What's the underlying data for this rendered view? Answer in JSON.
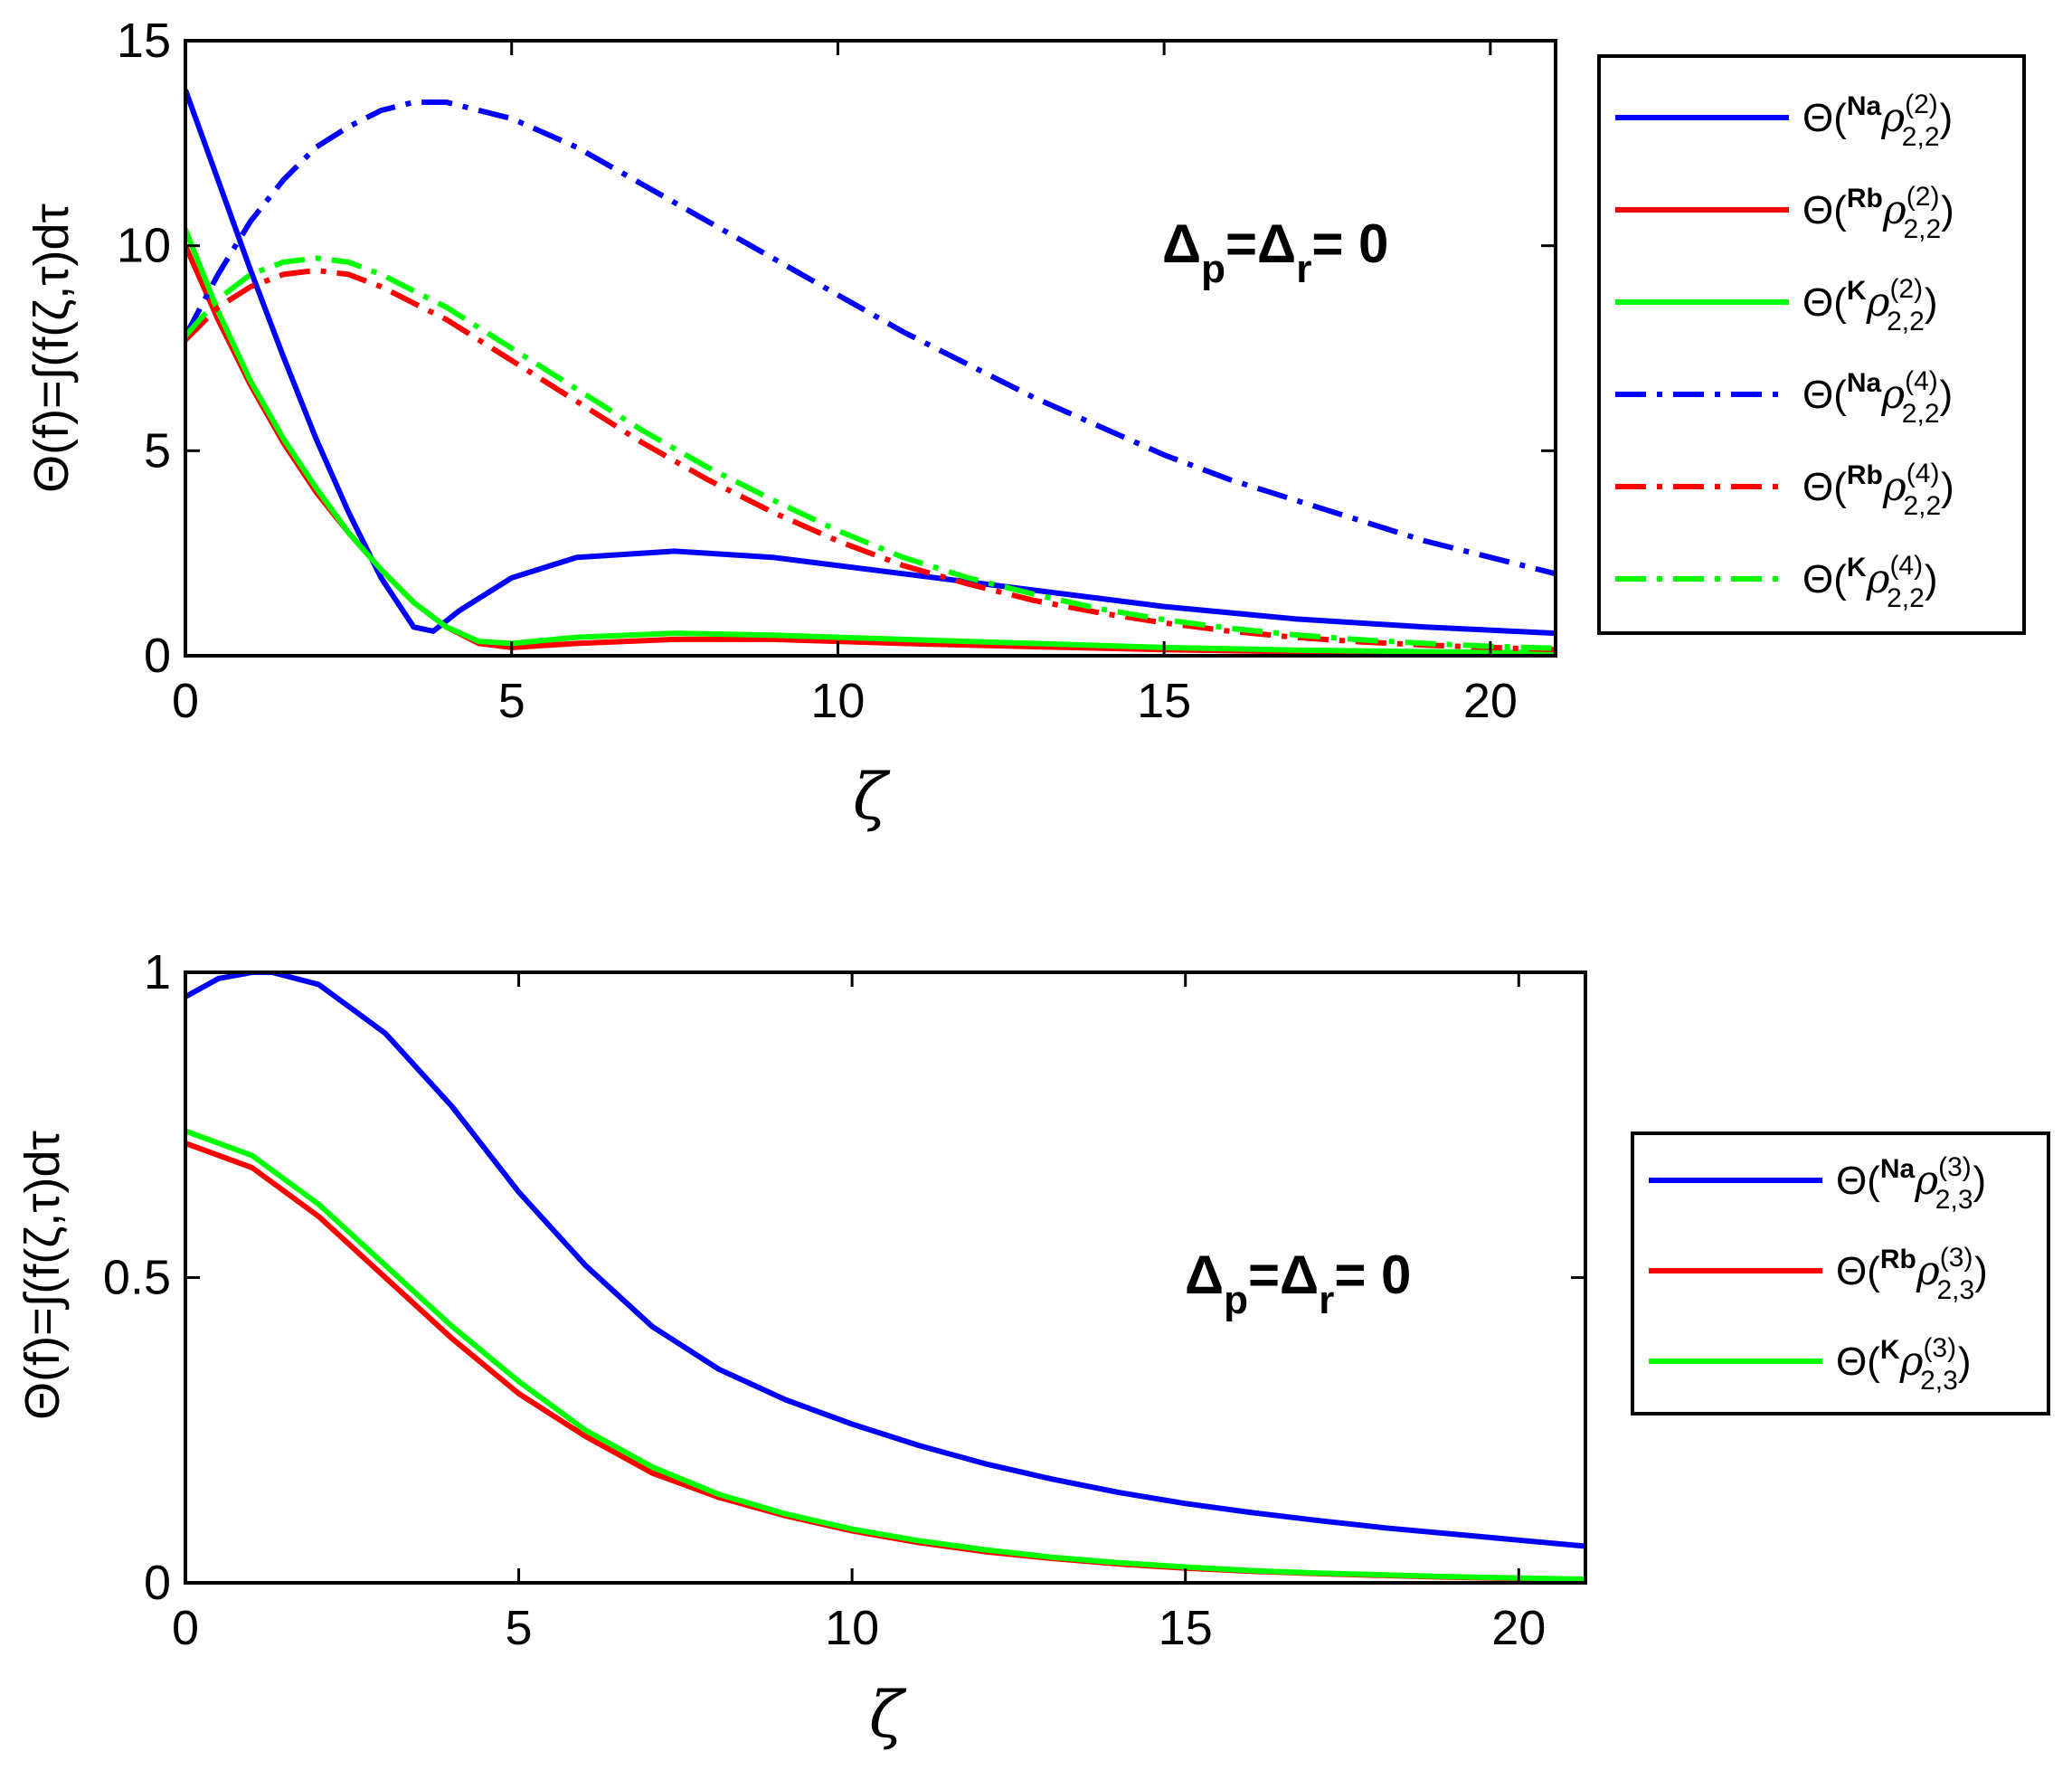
{
  "chart_data": [
    {
      "type": "line",
      "ylabel": "Θ(f)=∫(f(ζ,τ)dτ",
      "xlabel": "ζ",
      "xlim": [
        0,
        21
      ],
      "ylim": [
        0,
        15
      ],
      "xticks": [
        0,
        5,
        10,
        15,
        20
      ],
      "yticks": [
        0,
        5,
        10,
        15
      ],
      "annotation": {
        "text": "Δp=Δr= 0",
        "main1": "Δ",
        "sub1": "p",
        "mid": "=Δ",
        "sub2": "r",
        "tail": "= 0"
      },
      "legend_position": "outside-right",
      "series": [
        {
          "name": "Θ(Naρ(2)2,2)",
          "label": {
            "pre": "Na",
            "sup": "(2)",
            "sub": "2,2"
          },
          "color": "#0000ff",
          "dash": "solid",
          "x": [
            0,
            0.5,
            1,
            1.5,
            2,
            2.5,
            3,
            3.5,
            3.8,
            4.2,
            5,
            6,
            7.5,
            9,
            11,
            13,
            15,
            17,
            19,
            21
          ],
          "y": [
            13.8,
            11.6,
            9.4,
            7.3,
            5.3,
            3.5,
            1.9,
            0.7,
            0.6,
            1.1,
            1.9,
            2.4,
            2.55,
            2.4,
            2.0,
            1.6,
            1.2,
            0.9,
            0.7,
            0.55
          ]
        },
        {
          "name": "Θ(Rbρ(2)2,2)",
          "label": {
            "pre": "Rb",
            "sup": "(2)",
            "sub": "2,2"
          },
          "color": "#ff0000",
          "dash": "solid",
          "x": [
            0,
            0.5,
            1,
            1.5,
            2,
            2.5,
            3,
            3.5,
            4,
            4.5,
            5,
            6,
            7.5,
            9,
            11,
            13,
            15,
            17,
            19,
            21
          ],
          "y": [
            10.0,
            8.2,
            6.6,
            5.2,
            4.0,
            3.0,
            2.1,
            1.3,
            0.7,
            0.3,
            0.2,
            0.3,
            0.4,
            0.4,
            0.3,
            0.22,
            0.15,
            0.1,
            0.06,
            0.04
          ]
        },
        {
          "name": "Θ(Kρ(2)2,2)",
          "label": {
            "pre": "K",
            "sup": "(2)",
            "sub": "2,2"
          },
          "color": "#00ff00",
          "dash": "solid",
          "x": [
            0,
            0.5,
            1,
            1.5,
            2,
            2.5,
            3,
            3.5,
            4,
            4.5,
            5,
            6,
            7.5,
            9,
            11,
            13,
            15,
            17,
            19,
            21
          ],
          "y": [
            10.4,
            8.4,
            6.7,
            5.3,
            4.1,
            3.0,
            2.1,
            1.3,
            0.7,
            0.35,
            0.3,
            0.45,
            0.55,
            0.5,
            0.4,
            0.3,
            0.2,
            0.14,
            0.1,
            0.07
          ]
        },
        {
          "name": "Θ(Naρ(4)2,2)",
          "label": {
            "pre": "Na",
            "sup": "(4)",
            "sub": "2,2"
          },
          "color": "#0000ff",
          "dash": "dashdot",
          "x": [
            0,
            0.5,
            1,
            1.5,
            2,
            2.5,
            3,
            3.5,
            4,
            5,
            6,
            7,
            8,
            9,
            10,
            11,
            12,
            13,
            14,
            15,
            16,
            17,
            18,
            19,
            20,
            21
          ],
          "y": [
            7.8,
            9.3,
            10.6,
            11.6,
            12.4,
            12.9,
            13.3,
            13.5,
            13.5,
            13.1,
            12.4,
            11.5,
            10.6,
            9.7,
            8.8,
            7.9,
            7.1,
            6.3,
            5.6,
            4.9,
            4.3,
            3.8,
            3.3,
            2.8,
            2.4,
            2.0
          ]
        },
        {
          "name": "Θ(Rbρ(4)2,2)",
          "label": {
            "pre": "Rb",
            "sup": "(4)",
            "sub": "2,2"
          },
          "color": "#ff0000",
          "dash": "dashdot",
          "x": [
            0,
            0.5,
            1,
            1.5,
            2,
            2.5,
            3,
            4,
            5,
            6,
            7,
            8,
            9,
            10,
            11,
            12,
            13,
            14,
            15,
            16,
            17,
            18,
            19,
            20,
            21
          ],
          "y": [
            7.7,
            8.5,
            9.0,
            9.3,
            9.4,
            9.3,
            9.0,
            8.2,
            7.2,
            6.2,
            5.2,
            4.3,
            3.5,
            2.8,
            2.2,
            1.75,
            1.35,
            1.05,
            0.8,
            0.6,
            0.45,
            0.34,
            0.26,
            0.2,
            0.15
          ]
        },
        {
          "name": "Θ(Kρ(4)2,2)",
          "label": {
            "pre": "K",
            "sup": "(4)",
            "sub": "2,2"
          },
          "color": "#00ff00",
          "dash": "dashdot",
          "x": [
            0,
            0.5,
            1,
            1.5,
            2,
            2.5,
            3,
            4,
            5,
            6,
            7,
            8,
            9,
            10,
            11,
            12,
            13,
            14,
            15,
            16,
            17,
            18,
            19,
            20,
            21
          ],
          "y": [
            7.8,
            8.7,
            9.3,
            9.6,
            9.7,
            9.6,
            9.3,
            8.5,
            7.5,
            6.5,
            5.5,
            4.6,
            3.8,
            3.05,
            2.4,
            1.9,
            1.5,
            1.15,
            0.88,
            0.67,
            0.51,
            0.39,
            0.3,
            0.23,
            0.18
          ]
        }
      ]
    },
    {
      "type": "line",
      "ylabel": "Θ(f)=∫(f(ζ,τ)dτ",
      "xlabel": "ζ",
      "xlim": [
        0,
        21
      ],
      "ylim": [
        0,
        1
      ],
      "xticks": [
        0,
        5,
        10,
        15,
        20
      ],
      "yticks": [
        0,
        0.5,
        1
      ],
      "annotation": {
        "text": "Δp=Δr= 0",
        "main1": "Δ",
        "sub1": "p",
        "mid": "=Δ",
        "sub2": "r",
        "tail": "= 0"
      },
      "legend_position": "outside-right",
      "series": [
        {
          "name": "Θ(Naρ(3)2,3)",
          "label": {
            "pre": "Na",
            "sup": "(3)",
            "sub": "2,3"
          },
          "color": "#0000ff",
          "dash": "solid",
          "x": [
            0,
            0.5,
            1,
            1.3,
            2,
            3,
            4,
            5,
            6,
            7,
            8,
            9,
            10,
            11,
            12,
            13,
            14,
            15,
            16,
            17,
            18,
            19,
            20,
            21
          ],
          "y": [
            0.96,
            0.99,
            1.0,
            1.0,
            0.98,
            0.9,
            0.78,
            0.64,
            0.52,
            0.42,
            0.35,
            0.3,
            0.26,
            0.225,
            0.195,
            0.17,
            0.148,
            0.13,
            0.115,
            0.102,
            0.09,
            0.08,
            0.07,
            0.06
          ]
        },
        {
          "name": "Θ(Rbρ(3)2,3)",
          "label": {
            "pre": "Rb",
            "sup": "(3)",
            "sub": "2,3"
          },
          "color": "#ff0000",
          "dash": "solid",
          "x": [
            0,
            1,
            2,
            3,
            4,
            5,
            6,
            7,
            8,
            9,
            10,
            11,
            12,
            13,
            14,
            15,
            16,
            17,
            18,
            19,
            20,
            21
          ],
          "y": [
            0.72,
            0.68,
            0.6,
            0.5,
            0.4,
            0.31,
            0.24,
            0.18,
            0.14,
            0.11,
            0.085,
            0.066,
            0.051,
            0.04,
            0.031,
            0.024,
            0.019,
            0.015,
            0.012,
            0.009,
            0.007,
            0.005
          ]
        },
        {
          "name": "Θ(Kρ(3)2,3)",
          "label": {
            "pre": "K",
            "sup": "(3)",
            "sub": "2,3"
          },
          "color": "#00ff00",
          "dash": "solid",
          "x": [
            0,
            1,
            2,
            3,
            4,
            5,
            6,
            7,
            8,
            9,
            10,
            11,
            12,
            13,
            14,
            15,
            16,
            17,
            18,
            19,
            20,
            21
          ],
          "y": [
            0.74,
            0.7,
            0.62,
            0.52,
            0.42,
            0.33,
            0.25,
            0.19,
            0.145,
            0.113,
            0.088,
            0.069,
            0.054,
            0.042,
            0.033,
            0.026,
            0.02,
            0.016,
            0.013,
            0.01,
            0.008,
            0.006
          ]
        }
      ]
    }
  ]
}
